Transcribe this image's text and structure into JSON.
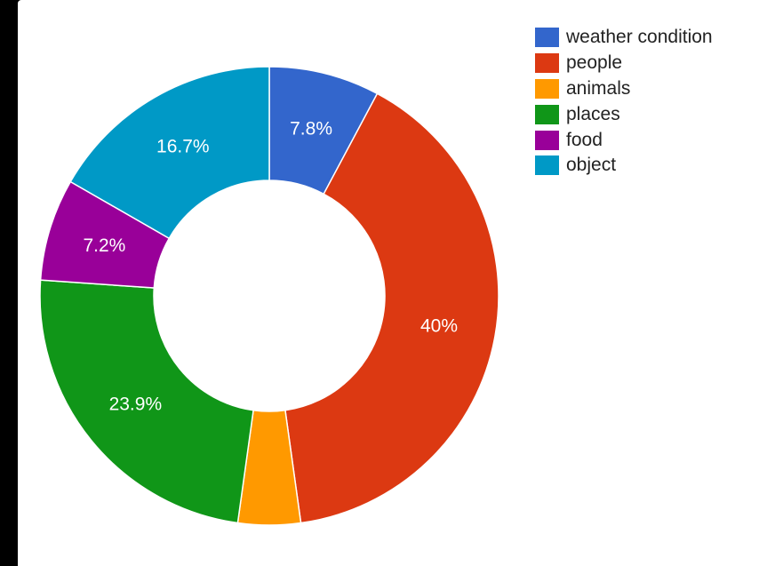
{
  "chart_data": {
    "type": "pie",
    "donut": true,
    "title": "",
    "start_angle_deg": 0,
    "direction": "clockwise",
    "legend_position": "right",
    "slices": [
      {
        "name": "weather condition",
        "value": 7.8,
        "label": "7.8%",
        "color": "#3366CC"
      },
      {
        "name": "people",
        "value": 40,
        "label": "40%",
        "color": "#DC3912"
      },
      {
        "name": "animals",
        "value": 4.4,
        "label": "",
        "color": "#FF9900"
      },
      {
        "name": "places",
        "value": 23.9,
        "label": "23.9%",
        "color": "#109618"
      },
      {
        "name": "food",
        "value": 7.2,
        "label": "7.2%",
        "color": "#990099"
      },
      {
        "name": "object",
        "value": 16.7,
        "label": "16.7%",
        "color": "#0099C6"
      }
    ]
  }
}
